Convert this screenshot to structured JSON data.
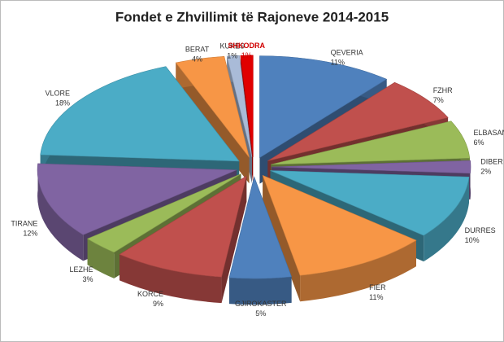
{
  "chart_data": {
    "type": "pie3d",
    "title": "Fondet e Zhvillimit të Rajoneve 2014-2015",
    "categories": [
      "QEVERIA",
      "FZHR",
      "ELBASAN",
      "DIBER",
      "DURRES",
      "FIER",
      "GJIROKASTER",
      "KORCE",
      "LEZHE",
      "TIRANE",
      "VLORE",
      "BERAT",
      "KUKES",
      "SHKODRA"
    ],
    "values": [
      11,
      7,
      6,
      2,
      10,
      11,
      5,
      9,
      3,
      12,
      18,
      4,
      1,
      1
    ],
    "value_labels": [
      "11%",
      "7%",
      "6%",
      "2%",
      "10%",
      "11%",
      "5%",
      "9%",
      "3%",
      "12%",
      "18%",
      "4%",
      "1%",
      "1%"
    ],
    "colors": [
      "#4f81bd",
      "#c0504d",
      "#9bbb59",
      "#8064a2",
      "#4bacc6",
      "#f79646",
      "#4f81bd",
      "#c0504d",
      "#9bbb59",
      "#8064a2",
      "#4bacc6",
      "#f79646",
      "#a9bbd8",
      "#e00000"
    ],
    "label_colors": [
      "#333333",
      "#333333",
      "#333333",
      "#333333",
      "#333333",
      "#333333",
      "#333333",
      "#333333",
      "#333333",
      "#333333",
      "#333333",
      "#333333",
      "#333333",
      "#d00000"
    ]
  }
}
